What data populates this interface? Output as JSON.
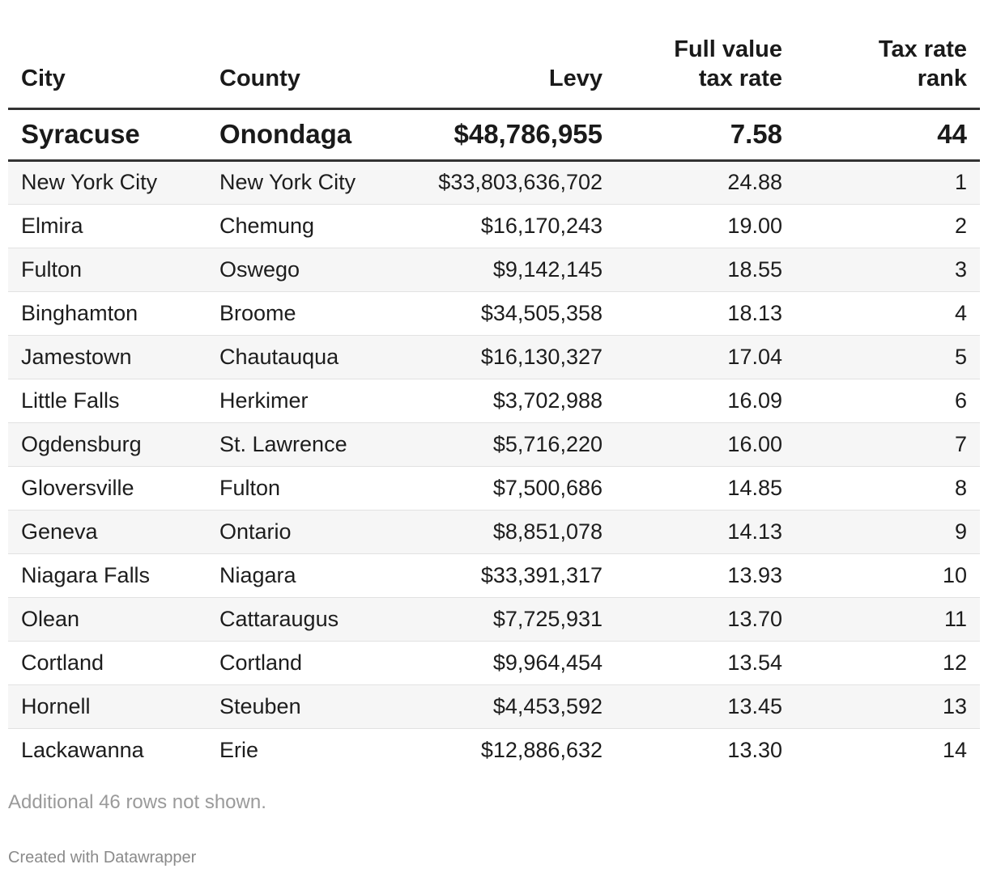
{
  "chart_data": {
    "type": "table",
    "columns": [
      {
        "key": "city",
        "label_lines": [
          "City"
        ],
        "align": "left"
      },
      {
        "key": "county",
        "label_lines": [
          "County"
        ],
        "align": "left"
      },
      {
        "key": "levy",
        "label_lines": [
          "Levy"
        ],
        "align": "right"
      },
      {
        "key": "rate",
        "label_lines": [
          "Full value",
          "tax rate"
        ],
        "align": "right"
      },
      {
        "key": "rank",
        "label_lines": [
          "Tax rate",
          "rank"
        ],
        "align": "right"
      }
    ],
    "highlight_row": {
      "city": "Syracuse",
      "county": "Onondaga",
      "levy": "$48,786,955",
      "rate": "7.58",
      "rank": "44"
    },
    "rows": [
      {
        "city": "New York City",
        "county": "New York City",
        "levy": "$33,803,636,702",
        "rate": "24.88",
        "rank": "1"
      },
      {
        "city": "Elmira",
        "county": "Chemung",
        "levy": "$16,170,243",
        "rate": "19.00",
        "rank": "2"
      },
      {
        "city": "Fulton",
        "county": "Oswego",
        "levy": "$9,142,145",
        "rate": "18.55",
        "rank": "3"
      },
      {
        "city": "Binghamton",
        "county": "Broome",
        "levy": "$34,505,358",
        "rate": "18.13",
        "rank": "4"
      },
      {
        "city": "Jamestown",
        "county": "Chautauqua",
        "levy": "$16,130,327",
        "rate": "17.04",
        "rank": "5"
      },
      {
        "city": "Little Falls",
        "county": "Herkimer",
        "levy": "$3,702,988",
        "rate": "16.09",
        "rank": "6"
      },
      {
        "city": "Ogdensburg",
        "county": "St. Lawrence",
        "levy": "$5,716,220",
        "rate": "16.00",
        "rank": "7"
      },
      {
        "city": "Gloversville",
        "county": "Fulton",
        "levy": "$7,500,686",
        "rate": "14.85",
        "rank": "8"
      },
      {
        "city": "Geneva",
        "county": "Ontario",
        "levy": "$8,851,078",
        "rate": "14.13",
        "rank": "9"
      },
      {
        "city": "Niagara Falls",
        "county": "Niagara",
        "levy": "$33,391,317",
        "rate": "13.93",
        "rank": "10"
      },
      {
        "city": "Olean",
        "county": "Cattaraugus",
        "levy": "$7,725,931",
        "rate": "13.70",
        "rank": "11"
      },
      {
        "city": "Cortland",
        "county": "Cortland",
        "levy": "$9,964,454",
        "rate": "13.54",
        "rank": "12"
      },
      {
        "city": "Hornell",
        "county": "Steuben",
        "levy": "$4,453,592",
        "rate": "13.45",
        "rank": "13"
      },
      {
        "city": "Lackawanna",
        "county": "Erie",
        "levy": "$12,886,632",
        "rate": "13.30",
        "rank": "14"
      }
    ]
  },
  "footer": {
    "note": "Additional 46 rows not shown.",
    "credit": "Created with Datawrapper"
  }
}
